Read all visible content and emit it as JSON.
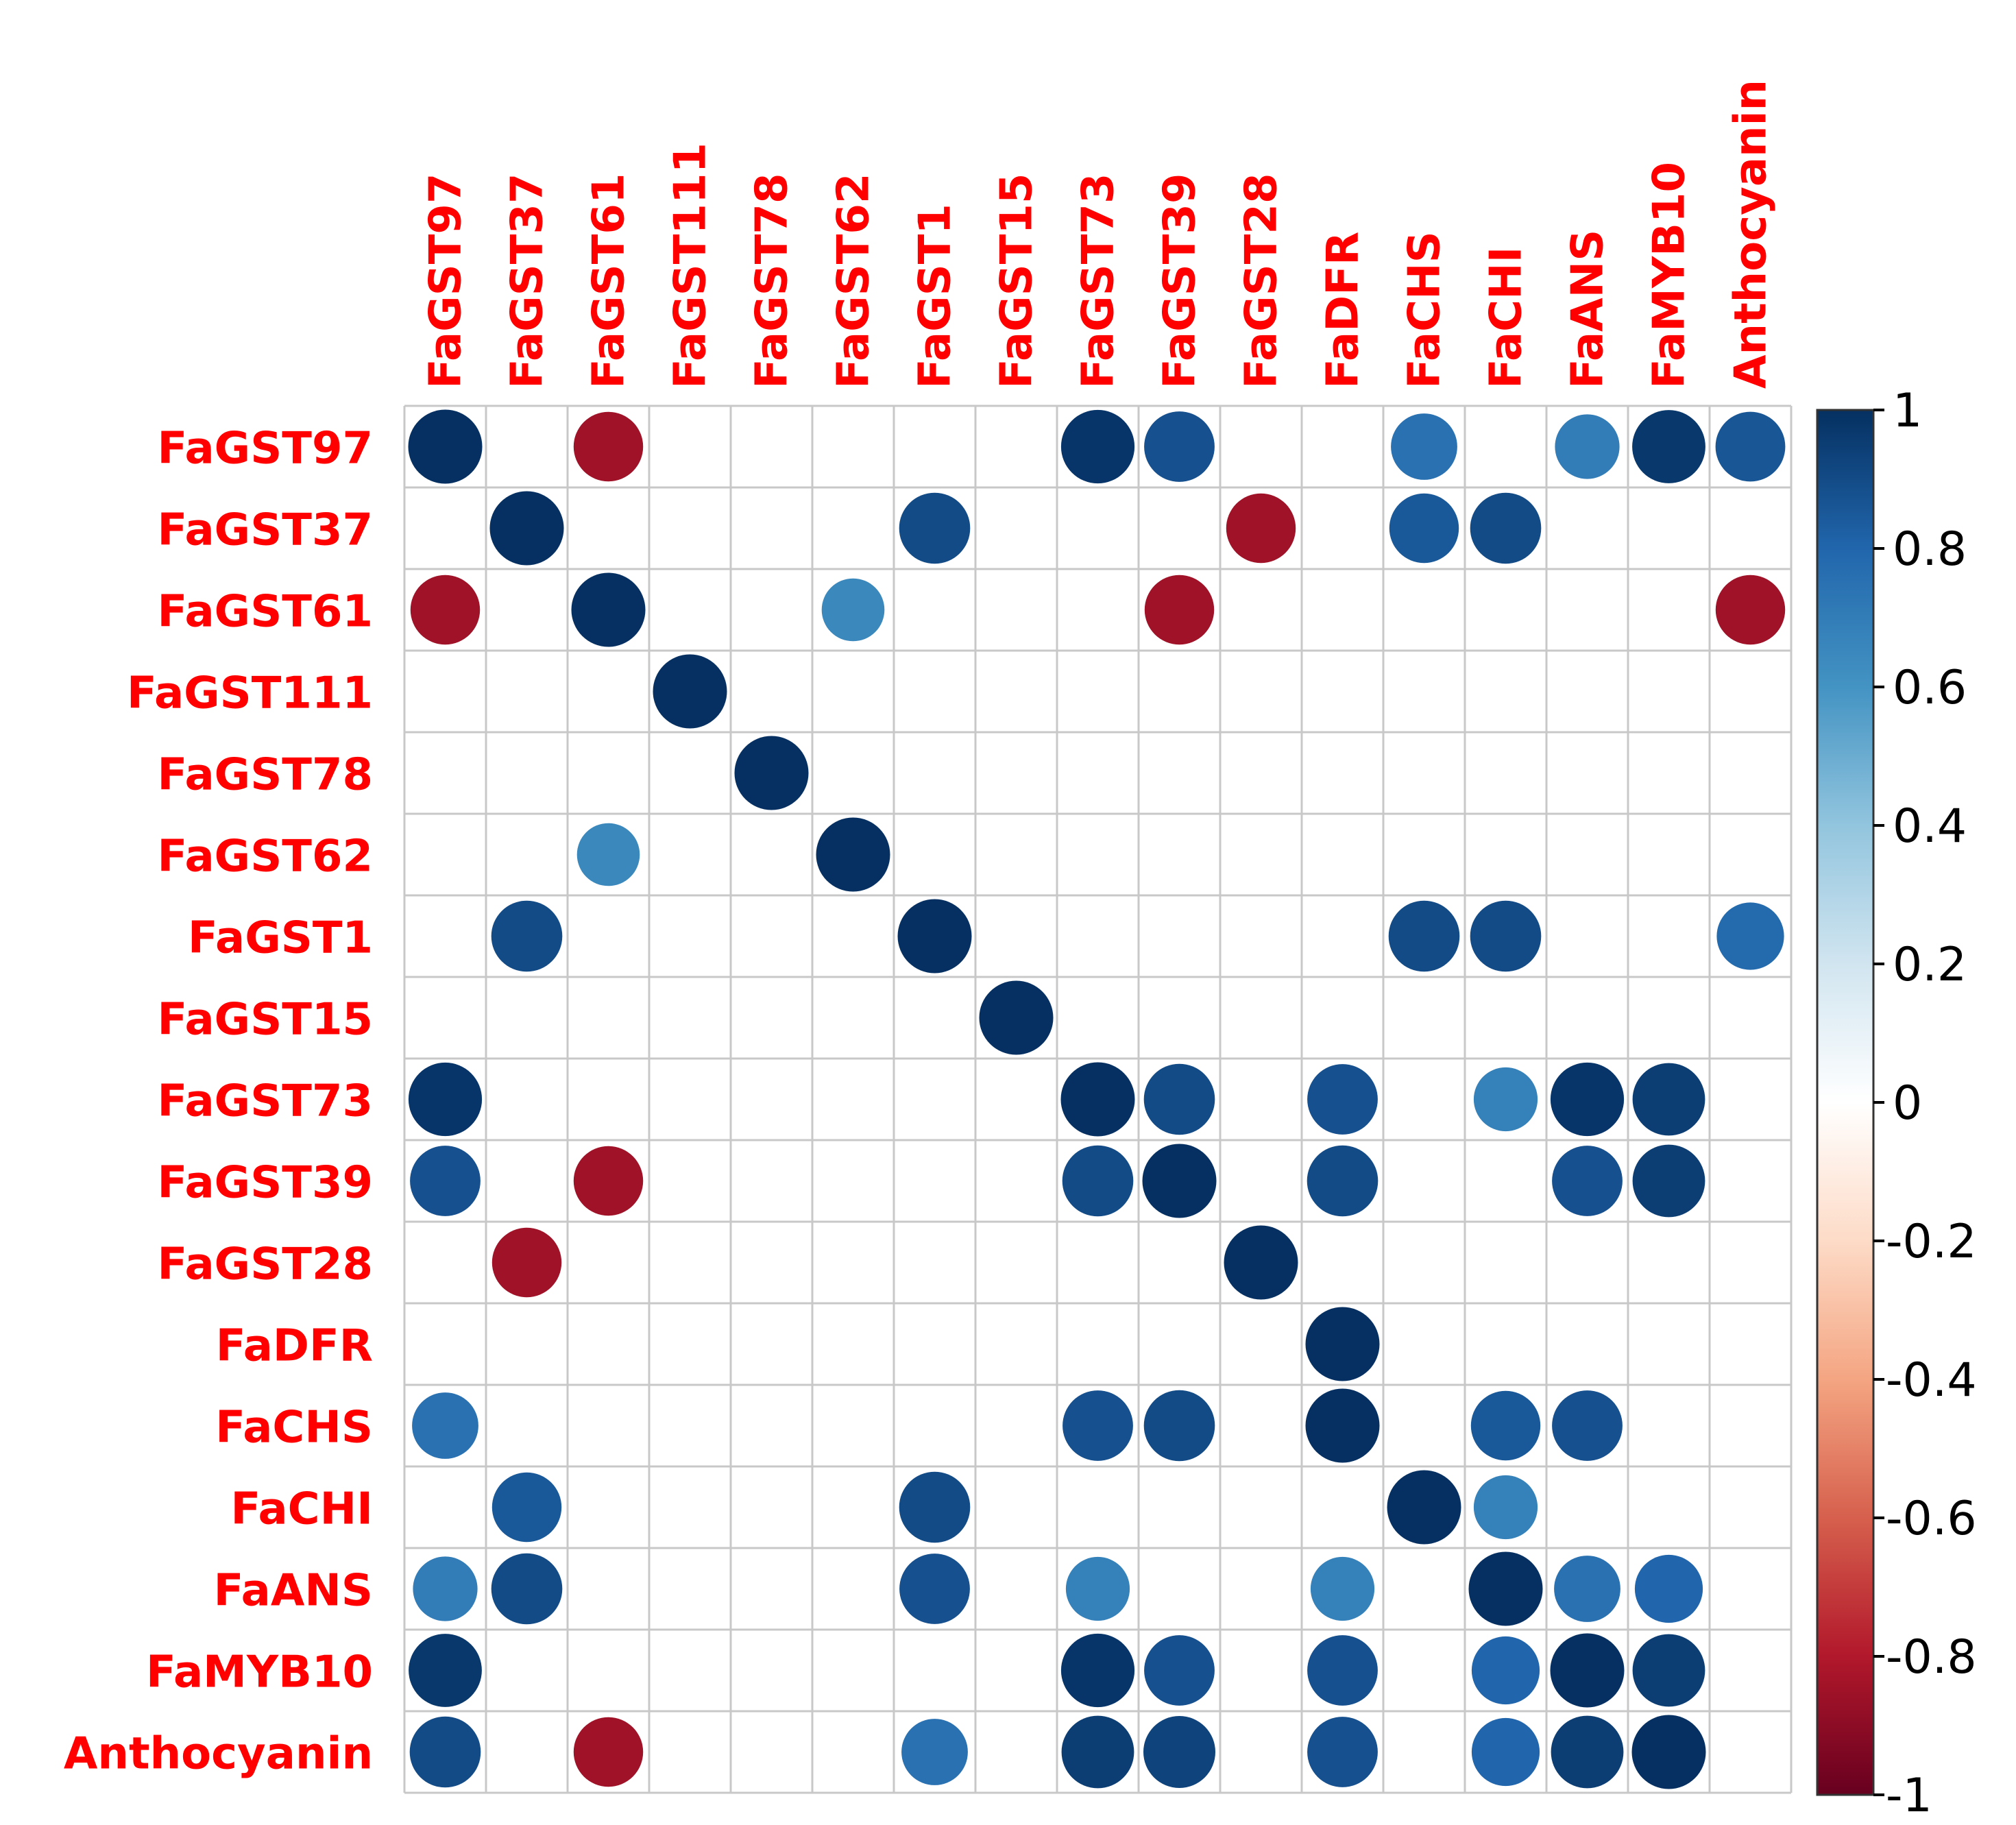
{
  "chart_data": {
    "type": "heatmap",
    "variables": [
      "FaGST97",
      "FaGST37",
      "FaGST61",
      "FaGST111",
      "FaGST78",
      "FaGST62",
      "FaGST1",
      "FaGST15",
      "FaGST73",
      "FaGST39",
      "FaGST28",
      "FaDFR",
      "FaCHS",
      "FaCHI",
      "FaANS",
      "FaMYB10",
      "Anthocyanin"
    ],
    "matrix": [
      [
        1,
        null,
        -0.85,
        null,
        null,
        null,
        null,
        null,
        0.98,
        0.88,
        null,
        null,
        0.75,
        null,
        0.7,
        0.97,
        0.86
      ],
      [
        null,
        1,
        null,
        null,
        null,
        null,
        0.9,
        null,
        null,
        null,
        -0.85,
        null,
        0.85,
        0.9,
        null,
        null,
        null
      ],
      [
        -0.85,
        null,
        1,
        null,
        null,
        0.65,
        null,
        null,
        null,
        -0.85,
        null,
        null,
        null,
        null,
        null,
        null,
        -0.85
      ],
      [
        null,
        null,
        null,
        1,
        null,
        null,
        null,
        null,
        null,
        null,
        null,
        null,
        null,
        null,
        null,
        null,
        null
      ],
      [
        null,
        null,
        null,
        null,
        1,
        null,
        null,
        null,
        null,
        null,
        null,
        null,
        null,
        null,
        null,
        null,
        null
      ],
      [
        null,
        null,
        0.65,
        null,
        null,
        1,
        null,
        null,
        null,
        null,
        null,
        null,
        null,
        null,
        null,
        null,
        null
      ],
      [
        null,
        0.9,
        null,
        null,
        null,
        null,
        1,
        null,
        null,
        null,
        null,
        null,
        0.9,
        0.9,
        null,
        null,
        0.78
      ],
      [
        null,
        null,
        null,
        null,
        null,
        null,
        null,
        1,
        null,
        null,
        null,
        null,
        null,
        null,
        null,
        null,
        null
      ],
      [
        0.98,
        null,
        null,
        null,
        null,
        null,
        null,
        null,
        1,
        0.9,
        null,
        0.88,
        null,
        0.68,
        0.98,
        0.95,
        null
      ],
      [
        0.88,
        null,
        -0.85,
        null,
        null,
        null,
        null,
        null,
        0.9,
        1,
        null,
        0.9,
        null,
        null,
        0.88,
        0.95,
        null
      ],
      [
        null,
        -0.85,
        null,
        null,
        null,
        null,
        null,
        null,
        null,
        null,
        1,
        null,
        null,
        null,
        null,
        null,
        null
      ],
      [
        null,
        null,
        null,
        null,
        null,
        null,
        null,
        null,
        null,
        null,
        null,
        1,
        null,
        null,
        null,
        null,
        null
      ],
      [
        0.75,
        null,
        null,
        null,
        null,
        null,
        null,
        null,
        0.88,
        0.9,
        null,
        1,
        null,
        0.85,
        0.88,
        null,
        null
      ],
      [
        null,
        0.85,
        null,
        null,
        null,
        null,
        0.9,
        null,
        null,
        null,
        null,
        null,
        1,
        0.68,
        null,
        null,
        null
      ],
      [
        0.7,
        0.9,
        null,
        null,
        null,
        null,
        0.88,
        null,
        0.68,
        null,
        null,
        0.68,
        null,
        1,
        0.75,
        0.8,
        null
      ],
      [
        0.97,
        null,
        null,
        null,
        null,
        null,
        null,
        null,
        0.98,
        0.88,
        null,
        0.88,
        null,
        0.8,
        1,
        0.95,
        null
      ],
      [
        0.9,
        null,
        -0.85,
        null,
        null,
        null,
        0.75,
        null,
        0.95,
        0.93,
        null,
        0.88,
        null,
        0.8,
        0.95,
        1,
        null
      ]
    ],
    "colorbar": {
      "ticks": [
        "1",
        "0.8",
        "0.6",
        "0.4",
        "0.2",
        "0",
        "-0.2",
        "-0.4",
        "-0.6",
        "-0.8",
        "-1"
      ],
      "range": [
        -1,
        1
      ],
      "colors": {
        "-1": "#67001f",
        "-0.8": "#b2182b",
        "-0.6": "#d6604d",
        "-0.4": "#f4a582",
        "-0.2": "#fddbc7",
        "0": "#ffffff",
        "0.2": "#d1e5f0",
        "0.4": "#92c5de",
        "0.6": "#4393c3",
        "0.8": "#2166ac",
        "1": "#053061"
      }
    },
    "label_color": "#ff0000",
    "grid": true
  }
}
